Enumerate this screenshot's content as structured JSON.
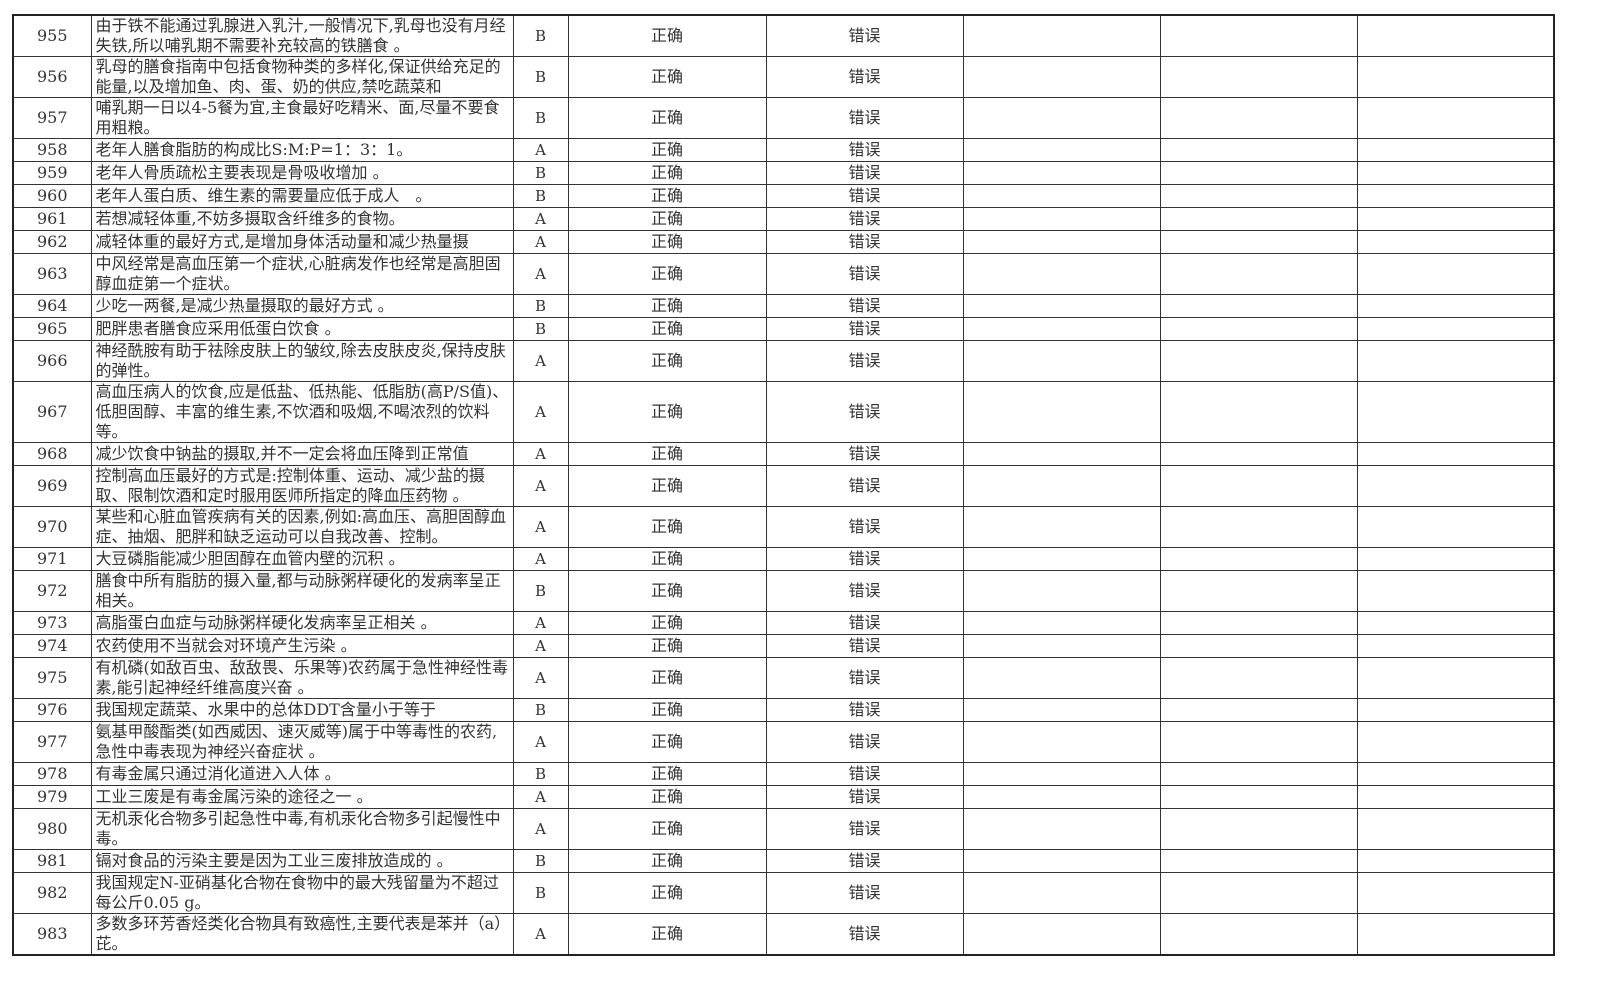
{
  "rows": [
    {
      "no": "955",
      "q": "由于铁不能通过乳腺进入乳汁,一般情况下,乳母也没有月经失铁,所以哺乳期不需要补充较高的铁膳食 。",
      "ans": "B",
      "opt_a": "正确",
      "opt_b": "错误",
      "lines": 2
    },
    {
      "no": "956",
      "q": "乳母的膳食指南中包括食物种类的多样化,保证供给充足的能量,以及增加鱼、肉、蛋、奶的供应,禁吃蔬菜和",
      "ans": "B",
      "opt_a": "正确",
      "opt_b": "错误",
      "lines": 2
    },
    {
      "no": "957",
      "q": "哺乳期一日以4-5餐为宜,主食最好吃精米、面,尽量不要食用粗粮。",
      "ans": "B",
      "opt_a": "正确",
      "opt_b": "错误",
      "lines": 2
    },
    {
      "no": "958",
      "q": "老年人膳食脂肪的构成比S:M:P=1：3：1。",
      "ans": "A",
      "opt_a": "正确",
      "opt_b": "错误",
      "lines": 1
    },
    {
      "no": "959",
      "q": "老年人骨质疏松主要表现是骨吸收增加 。",
      "ans": "B",
      "opt_a": "正确",
      "opt_b": "错误",
      "lines": 1
    },
    {
      "no": "960",
      "q": "老年人蛋白质、维生素的需要量应低于成人　。",
      "ans": "B",
      "opt_a": "正确",
      "opt_b": "错误",
      "lines": 1
    },
    {
      "no": "961",
      "q": "若想减轻体重,不妨多摄取含纤维多的食物。",
      "ans": "A",
      "opt_a": "正确",
      "opt_b": "错误",
      "lines": 1
    },
    {
      "no": "962",
      "q": "减轻体重的最好方式,是增加身体活动量和减少热量摄",
      "ans": "A",
      "opt_a": "正确",
      "opt_b": "错误",
      "lines": 1
    },
    {
      "no": "963",
      "q": "中风经常是高血压第一个症状,心脏病发作也经常是高胆固醇血症第一个症状。",
      "ans": "A",
      "opt_a": "正确",
      "opt_b": "错误",
      "lines": 2
    },
    {
      "no": "964",
      "q": "少吃一两餐,是减少热量摄取的最好方式 。",
      "ans": "B",
      "opt_a": "正确",
      "opt_b": "错误",
      "lines": 1
    },
    {
      "no": "965",
      "q": "肥胖患者膳食应采用低蛋白饮食 。",
      "ans": "B",
      "opt_a": "正确",
      "opt_b": "错误",
      "lines": 1
    },
    {
      "no": "966",
      "q": "神经酰胺有助于祛除皮肤上的皱纹,除去皮肤皮炎,保持皮肤的弹性。",
      "ans": "A",
      "opt_a": "正确",
      "opt_b": "错误",
      "lines": 2
    },
    {
      "no": "967",
      "q": "高血压病人的饮食,应是低盐、低热能、低脂肪(高P/S值)、低胆固醇、丰富的维生素,不饮酒和吸烟,不喝浓烈的饮料等。",
      "ans": "A",
      "opt_a": "正确",
      "opt_b": "错误",
      "lines": 3
    },
    {
      "no": "968",
      "q": "减少饮食中钠盐的摄取,并不一定会将血压降到正常值",
      "ans": "A",
      "opt_a": "正确",
      "opt_b": "错误",
      "lines": 1
    },
    {
      "no": "969",
      "q": "控制高血压最好的方式是:控制体重、运动、减少盐的摄取、限制饮酒和定时服用医师所指定的降血压药物 。",
      "ans": "A",
      "opt_a": "正确",
      "opt_b": "错误",
      "lines": 2
    },
    {
      "no": "970",
      "q": "某些和心脏血管疾病有关的因素,例如:高血压、高胆固醇血症、抽烟、肥胖和缺乏运动可以自我改善、控制。",
      "ans": "A",
      "opt_a": "正确",
      "opt_b": "错误",
      "lines": 2
    },
    {
      "no": "971",
      "q": "大豆磷脂能减少胆固醇在血管内壁的沉积 。",
      "ans": "A",
      "opt_a": "正确",
      "opt_b": "错误",
      "lines": 1
    },
    {
      "no": "972",
      "q": "膳食中所有脂肪的摄入量,都与动脉粥样硬化的发病率呈正相关。",
      "ans": "B",
      "opt_a": "正确",
      "opt_b": "错误",
      "lines": 2
    },
    {
      "no": "973",
      "q": "高脂蛋白血症与动脉粥样硬化发病率呈正相关 。",
      "ans": "A",
      "opt_a": "正确",
      "opt_b": "错误",
      "lines": 1
    },
    {
      "no": "974",
      "q": "农药使用不当就会对环境产生污染 。",
      "ans": "A",
      "opt_a": "正确",
      "opt_b": "错误",
      "lines": 1
    },
    {
      "no": "975",
      "q": "有机磷(如敌百虫、敌敌畏、乐果等)农药属于急性神经性毒素,能引起神经纤维高度兴奋 。",
      "ans": "A",
      "opt_a": "正确",
      "opt_b": "错误",
      "lines": 2
    },
    {
      "no": "976",
      "q": "我国规定蔬菜、水果中的总体DDT含量小于等于",
      "ans": "B",
      "opt_a": "正确",
      "opt_b": "错误",
      "lines": 1
    },
    {
      "no": "977",
      "q": "氨基甲酸酯类(如西威因、速灭威等)属于中等毒性的农药,急性中毒表现为神经兴奋症状 。",
      "ans": "A",
      "opt_a": "正确",
      "opt_b": "错误",
      "lines": 2
    },
    {
      "no": "978",
      "q": "有毒金属只通过消化道进入人体 。",
      "ans": "B",
      "opt_a": "正确",
      "opt_b": "错误",
      "lines": 1
    },
    {
      "no": "979",
      "q": "工业三废是有毒金属污染的途径之一 。",
      "ans": "A",
      "opt_a": "正确",
      "opt_b": "错误",
      "lines": 1
    },
    {
      "no": "980",
      "q": "无机汞化合物多引起急性中毒,有机汞化合物多引起慢性中毒。",
      "ans": "A",
      "opt_a": "正确",
      "opt_b": "错误",
      "lines": 2
    },
    {
      "no": "981",
      "q": "镉对食品的污染主要是因为工业三废排放造成的 。",
      "ans": "B",
      "opt_a": "正确",
      "opt_b": "错误",
      "lines": 1
    },
    {
      "no": "982",
      "q": "我国规定N-亚硝基化合物在食物中的最大残留量为不超过每公斤0.05 g。",
      "ans": "B",
      "opt_a": "正确",
      "opt_b": "错误",
      "lines": 2
    },
    {
      "no": "983",
      "q": "多数多环芳香烃类化合物具有致癌性,主要代表是苯并（a）芘。",
      "ans": "A",
      "opt_a": "正确",
      "opt_b": "错误",
      "lines": 2
    }
  ]
}
